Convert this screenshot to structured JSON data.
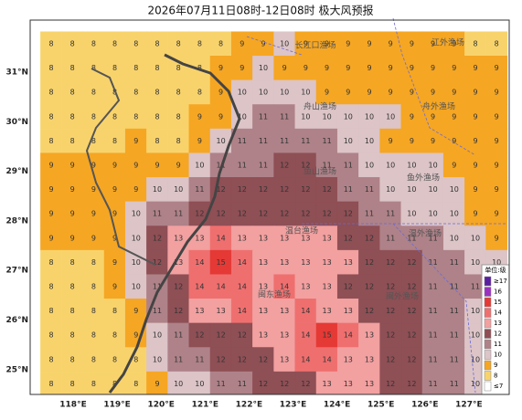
{
  "title": "2026年07月11日08时-12日08时 极大风预报",
  "lon_labels": [
    "118°E",
    "119°E",
    "120°E",
    "121°E",
    "122°E",
    "123°E",
    "124°E",
    "125°E",
    "126°E",
    "127°E"
  ],
  "lat_labels": [
    "31°N",
    "30°N",
    "29°N",
    "28°N",
    "27°N",
    "26°N",
    "25°N"
  ],
  "regions": [
    "长江口渔场",
    "江外渔场",
    "舟山渔场",
    "舟外渔场",
    "鱼山渔场",
    "鱼外渔场",
    "温台渔场",
    "温外渔场",
    "闽东渔场",
    "闽外渔场"
  ],
  "legend": {
    "title": "单位:级",
    "levels": [
      {
        "label": "≥17",
        "color": "#5a1fa0"
      },
      {
        "label": "16",
        "color": "#9b30c0"
      },
      {
        "label": "15",
        "color": "#e53935"
      },
      {
        "label": "14",
        "color": "#ef6f6f"
      },
      {
        "label": "13",
        "color": "#f2a0a0"
      },
      {
        "label": "12",
        "color": "#8e4f55"
      },
      {
        "label": "11",
        "color": "#ae8288"
      },
      {
        "label": "10",
        "color": "#dcc4c7"
      },
      {
        "label": "9",
        "color": "#f5a623"
      },
      {
        "label": "8",
        "color": "#f8d36c"
      },
      {
        "label": "≤7",
        "color": "#ffffff"
      }
    ]
  },
  "grid": {
    "rows": [
      [
        8,
        8,
        8,
        8,
        8,
        8,
        8,
        8,
        8,
        9,
        9,
        10,
        9,
        9,
        9,
        9,
        9,
        9,
        9,
        9,
        8,
        8
      ],
      [
        8,
        8,
        8,
        8,
        8,
        8,
        8,
        8,
        9,
        9,
        10,
        9,
        9,
        9,
        9,
        9,
        9,
        9,
        9,
        9,
        9,
        9
      ],
      [
        8,
        8,
        8,
        8,
        8,
        8,
        8,
        8,
        9,
        10,
        10,
        10,
        10,
        9,
        9,
        9,
        9,
        9,
        9,
        9,
        9,
        9
      ],
      [
        8,
        8,
        8,
        8,
        8,
        8,
        8,
        9,
        9,
        10,
        11,
        11,
        10,
        10,
        10,
        10,
        10,
        9,
        9,
        9,
        9,
        9
      ],
      [
        8,
        8,
        8,
        8,
        9,
        8,
        8,
        9,
        10,
        11,
        11,
        11,
        11,
        11,
        10,
        10,
        9,
        9,
        9,
        9,
        9,
        9
      ],
      [
        9,
        9,
        9,
        9,
        9,
        9,
        9,
        10,
        11,
        11,
        11,
        12,
        12,
        11,
        11,
        10,
        10,
        10,
        10,
        9,
        9,
        9
      ],
      [
        9,
        9,
        9,
        9,
        9,
        10,
        10,
        11,
        12,
        12,
        12,
        12,
        12,
        12,
        11,
        11,
        10,
        10,
        10,
        10,
        9,
        9
      ],
      [
        9,
        9,
        9,
        9,
        10,
        11,
        11,
        12,
        12,
        12,
        12,
        12,
        12,
        12,
        12,
        11,
        11,
        10,
        10,
        10,
        9,
        9
      ],
      [
        9,
        9,
        9,
        9,
        10,
        12,
        13,
        13,
        14,
        13,
        13,
        13,
        13,
        13,
        12,
        12,
        11,
        11,
        11,
        10,
        10,
        9
      ],
      [
        8,
        8,
        8,
        9,
        10,
        12,
        13,
        14,
        15,
        14,
        13,
        13,
        13,
        13,
        13,
        12,
        12,
        12,
        11,
        11,
        10,
        10
      ],
      [
        8,
        8,
        8,
        9,
        10,
        11,
        12,
        14,
        14,
        14,
        13,
        14,
        13,
        13,
        12,
        12,
        12,
        12,
        11,
        11,
        11,
        10
      ],
      [
        8,
        8,
        8,
        8,
        9,
        11,
        12,
        13,
        13,
        14,
        13,
        13,
        14,
        13,
        13,
        12,
        12,
        12,
        11,
        11,
        10,
        10
      ],
      [
        8,
        8,
        8,
        8,
        9,
        10,
        11,
        12,
        12,
        12,
        13,
        13,
        14,
        15,
        14,
        13,
        12,
        12,
        11,
        11,
        10,
        10
      ],
      [
        8,
        8,
        8,
        8,
        8,
        10,
        11,
        11,
        12,
        12,
        12,
        13,
        14,
        14,
        13,
        13,
        12,
        12,
        11,
        11,
        10,
        10
      ],
      [
        8,
        8,
        8,
        8,
        8,
        9,
        10,
        10,
        11,
        11,
        12,
        12,
        12,
        13,
        13,
        13,
        12,
        12,
        11,
        11,
        10,
        10
      ]
    ]
  }
}
